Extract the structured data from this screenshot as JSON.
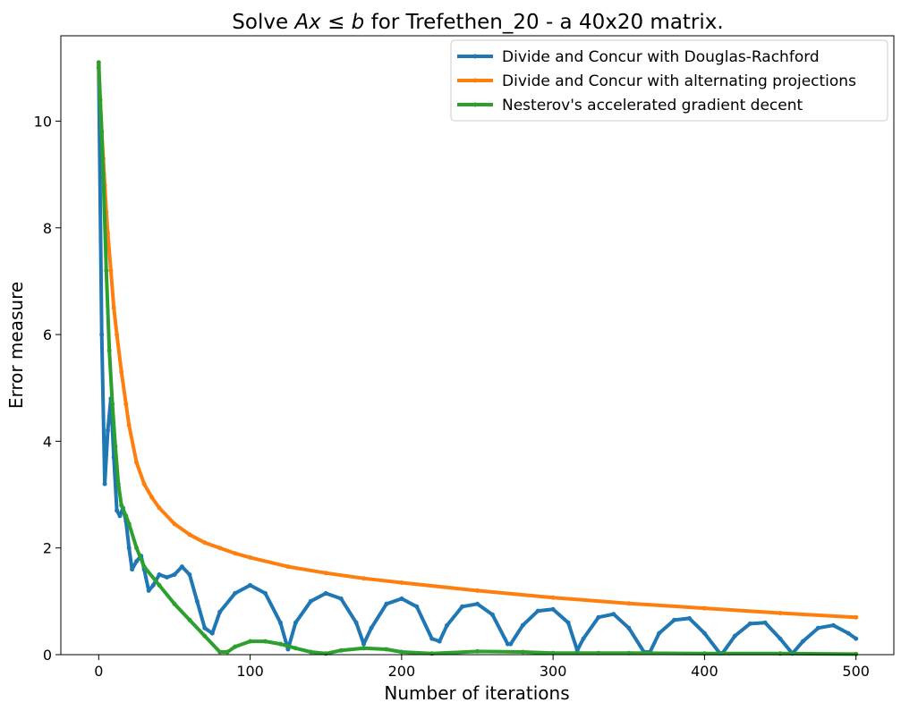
{
  "chart_data": {
    "type": "line",
    "title_prefix": "Solve ",
    "title_math": "Ax ≤ b",
    "title_suffix": " for Trefethen_20 - a 40x20 matrix.",
    "xlabel": "Number of iterations",
    "ylabel": "Error measure",
    "xlim": [
      -25,
      525
    ],
    "ylim": [
      0,
      11.6
    ],
    "xticks": [
      0,
      100,
      200,
      300,
      400,
      500
    ],
    "yticks": [
      0,
      2,
      4,
      6,
      8,
      10
    ],
    "grid": false,
    "legend_position": "top-right",
    "series": [
      {
        "name": "Divide and Concur with Douglas-Rachford",
        "color": "#1f77b4",
        "x": [
          0,
          2,
          4,
          6,
          8,
          10,
          12,
          14,
          16,
          18,
          20,
          22,
          25,
          28,
          30,
          33,
          36,
          40,
          45,
          50,
          55,
          60,
          65,
          70,
          75,
          80,
          90,
          100,
          110,
          120,
          125,
          130,
          140,
          150,
          160,
          170,
          175,
          180,
          190,
          200,
          210,
          220,
          225,
          230,
          240,
          250,
          260,
          270,
          272,
          280,
          290,
          300,
          310,
          316,
          320,
          330,
          340,
          350,
          360,
          364,
          370,
          380,
          390,
          400,
          410,
          412,
          420,
          430,
          440,
          450,
          458,
          465,
          475,
          485,
          495,
          500
        ],
        "y": [
          11.0,
          6.0,
          3.2,
          4.2,
          4.8,
          3.7,
          2.7,
          2.6,
          2.75,
          2.5,
          2.0,
          1.6,
          1.75,
          1.85,
          1.6,
          1.2,
          1.3,
          1.5,
          1.45,
          1.5,
          1.65,
          1.5,
          1.0,
          0.5,
          0.4,
          0.8,
          1.15,
          1.3,
          1.15,
          0.6,
          0.1,
          0.6,
          1.0,
          1.15,
          1.05,
          0.6,
          0.2,
          0.5,
          0.95,
          1.05,
          0.9,
          0.3,
          0.25,
          0.55,
          0.9,
          0.95,
          0.75,
          0.2,
          0.2,
          0.55,
          0.82,
          0.85,
          0.6,
          0.08,
          0.3,
          0.7,
          0.76,
          0.5,
          0.05,
          0.05,
          0.4,
          0.65,
          0.68,
          0.4,
          0.03,
          0.03,
          0.35,
          0.58,
          0.6,
          0.3,
          0.02,
          0.25,
          0.5,
          0.55,
          0.4,
          0.3
        ]
      },
      {
        "name": "Divide and Concur with alternating projections",
        "color": "#ff7f0e",
        "x": [
          0,
          1,
          2,
          3,
          4,
          5,
          6,
          8,
          10,
          12,
          15,
          18,
          20,
          25,
          30,
          35,
          40,
          50,
          60,
          70,
          80,
          90,
          100,
          125,
          150,
          175,
          200,
          250,
          300,
          350,
          400,
          450,
          500
        ],
        "y": [
          11.05,
          10.4,
          9.8,
          9.3,
          8.8,
          8.3,
          7.9,
          7.2,
          6.5,
          6.0,
          5.3,
          4.7,
          4.3,
          3.6,
          3.2,
          2.95,
          2.75,
          2.45,
          2.25,
          2.1,
          2.0,
          1.9,
          1.82,
          1.65,
          1.53,
          1.43,
          1.35,
          1.2,
          1.07,
          0.96,
          0.87,
          0.78,
          0.7
        ]
      },
      {
        "name": "Nesterov's accelerated gradient decent",
        "color": "#2ca02c",
        "x": [
          0,
          1,
          2,
          3,
          5,
          7,
          9,
          11,
          13,
          15,
          18,
          20,
          25,
          30,
          40,
          50,
          60,
          70,
          80,
          85,
          90,
          100,
          110,
          120,
          130,
          140,
          150,
          160,
          175,
          190,
          200,
          220,
          250,
          280,
          300,
          330,
          350,
          400,
          450,
          500
        ],
        "y": [
          11.1,
          10.4,
          9.8,
          9.0,
          7.2,
          5.7,
          4.7,
          3.9,
          3.2,
          2.8,
          2.6,
          2.45,
          2.0,
          1.65,
          1.3,
          0.95,
          0.65,
          0.35,
          0.05,
          0.05,
          0.15,
          0.25,
          0.25,
          0.2,
          0.12,
          0.05,
          0.02,
          0.08,
          0.12,
          0.1,
          0.05,
          0.02,
          0.06,
          0.05,
          0.03,
          0.03,
          0.03,
          0.02,
          0.02,
          0.01
        ]
      }
    ]
  }
}
